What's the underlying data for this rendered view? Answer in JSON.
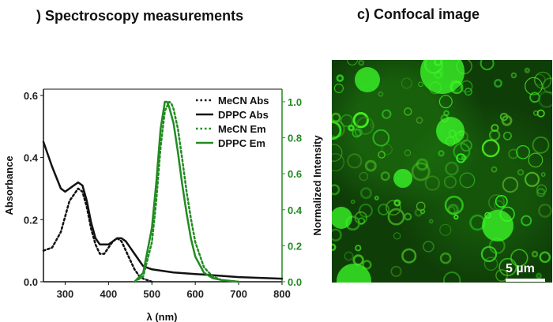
{
  "titles": {
    "left": ") Spectroscopy measurements",
    "right": "c) Confocal image"
  },
  "chart_data": {
    "type": "line",
    "xlabel": "λ (nm)",
    "ylabel_left": "Absorbance",
    "ylabel_right": "Normalized Intensity",
    "xlim": [
      250,
      800
    ],
    "ylim_left": [
      0,
      0.62
    ],
    "ylim_right": [
      0,
      1.07
    ],
    "x_ticks": [
      "300",
      "400",
      "500",
      "600",
      "700",
      "800"
    ],
    "y_left_ticks": [
      "0.0",
      "0.2",
      "0.4",
      "0.6"
    ],
    "y_right_ticks": [
      "0.0",
      "0.2",
      "0.4",
      "0.6",
      "0.8",
      "1.0"
    ],
    "legend_position": "top-right",
    "colors": {
      "black": "#111111",
      "green": "#228b22"
    },
    "series": [
      {
        "name": "MeCN Abs",
        "axis": "left",
        "color": "#111111",
        "style": "dotted",
        "x": [
          250,
          270,
          290,
          310,
          330,
          340,
          350,
          360,
          370,
          380,
          390,
          400,
          410,
          420,
          430,
          440,
          450,
          460,
          470,
          480,
          500
        ],
        "y": [
          0.1,
          0.11,
          0.16,
          0.26,
          0.3,
          0.29,
          0.24,
          0.17,
          0.12,
          0.09,
          0.09,
          0.11,
          0.13,
          0.14,
          0.13,
          0.1,
          0.07,
          0.04,
          0.02,
          0.01,
          0.0
        ]
      },
      {
        "name": "DPPC Abs",
        "axis": "left",
        "color": "#111111",
        "style": "solid",
        "x": [
          250,
          270,
          290,
          300,
          320,
          330,
          340,
          350,
          360,
          370,
          380,
          390,
          400,
          410,
          420,
          430,
          440,
          450,
          460,
          470,
          480,
          500,
          550,
          600,
          700,
          800
        ],
        "y": [
          0.45,
          0.37,
          0.3,
          0.29,
          0.31,
          0.32,
          0.31,
          0.26,
          0.19,
          0.14,
          0.12,
          0.12,
          0.12,
          0.13,
          0.14,
          0.14,
          0.13,
          0.11,
          0.09,
          0.07,
          0.05,
          0.04,
          0.03,
          0.025,
          0.015,
          0.01
        ]
      },
      {
        "name": "MeCN Em",
        "axis": "right",
        "color": "#228b22",
        "style": "dotted",
        "x": [
          460,
          480,
          500,
          510,
          520,
          530,
          540,
          545,
          550,
          560,
          570,
          580,
          590,
          600,
          620,
          640,
          660,
          700
        ],
        "y": [
          0.0,
          0.03,
          0.22,
          0.45,
          0.75,
          0.95,
          1.0,
          0.99,
          0.96,
          0.85,
          0.68,
          0.5,
          0.35,
          0.22,
          0.08,
          0.03,
          0.01,
          0.0
        ]
      },
      {
        "name": "DPPC Em",
        "axis": "right",
        "color": "#228b22",
        "style": "solid",
        "x": [
          460,
          480,
          500,
          510,
          520,
          530,
          535,
          540,
          550,
          560,
          570,
          580,
          590,
          600,
          620,
          640,
          660,
          700
        ],
        "y": [
          0.0,
          0.05,
          0.3,
          0.55,
          0.85,
          1.0,
          1.0,
          0.97,
          0.88,
          0.72,
          0.54,
          0.38,
          0.24,
          0.14,
          0.05,
          0.02,
          0.01,
          0.0
        ]
      }
    ]
  },
  "image": {
    "scalebar_label": "5 µm"
  }
}
